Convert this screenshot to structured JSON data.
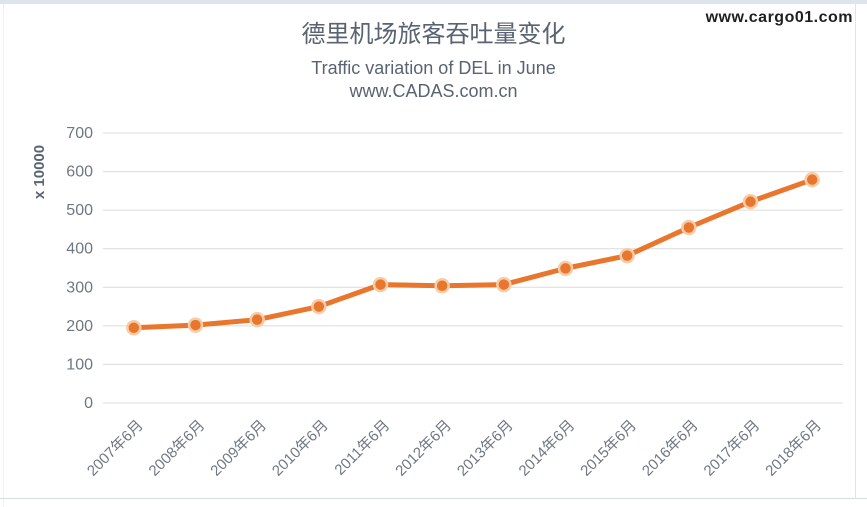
{
  "watermark": "www.cargo01.com",
  "chart_data": {
    "type": "line",
    "title": "德里机场旅客吞吐量变化",
    "subtitle": "Traffic variation of DEL in June",
    "subtitle2": "www.CADAS.com.cn",
    "categories": [
      "2007年6月",
      "2008年6月",
      "2009年6月",
      "2010年6月",
      "2011年6月",
      "2012年6月",
      "2013年6月",
      "2014年6月",
      "2015年6月",
      "2016年6月",
      "2017年6月",
      "2018年6月"
    ],
    "values": [
      195,
      202,
      216,
      250,
      307,
      304,
      307,
      349,
      382,
      455,
      522,
      579
    ],
    "ylabel": "x 10000",
    "yticks": [
      0,
      100,
      200,
      300,
      400,
      500,
      600,
      700
    ],
    "ylim": [
      0,
      700
    ],
    "grid": true,
    "legend_position": "none"
  },
  "colors": {
    "line": "#E8762C",
    "marker": "#E8762C",
    "marker_halo": "#F6CDA8",
    "grid": "#D9DCDF",
    "tick_label": "#6F7783",
    "axis_title": "#5A6372",
    "title": "#5A6372",
    "watermark": "#1F1F1F"
  }
}
